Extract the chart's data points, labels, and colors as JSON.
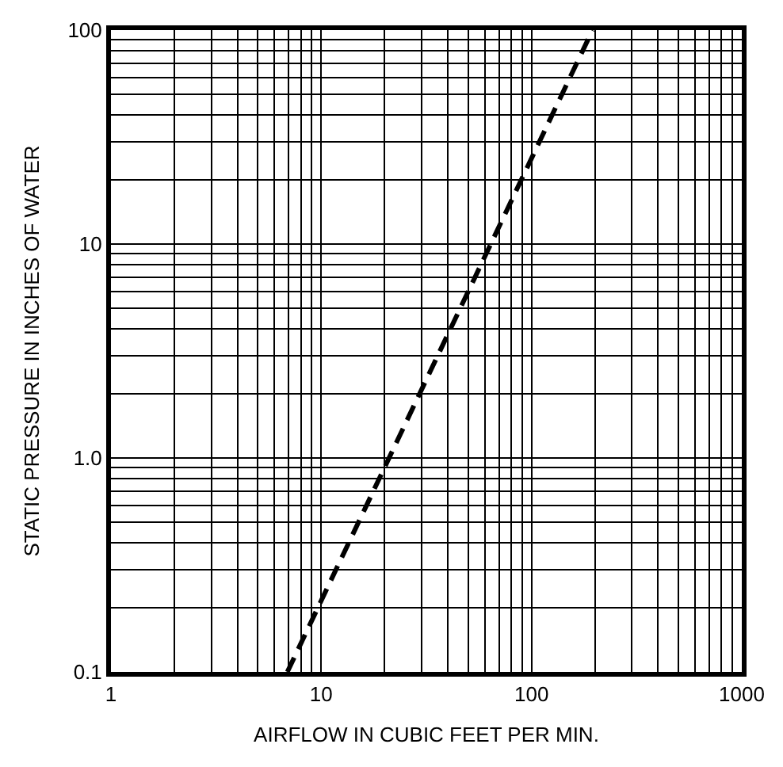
{
  "chart_data": {
    "type": "line",
    "xlabel": "AIRFLOW IN CUBIC FEET PER MIN.",
    "ylabel": "STATIC PRESSURE IN INCHES OF WATER",
    "log": "xy",
    "grid": true,
    "marker": "none",
    "line_style": "dashed",
    "xlim": [
      1,
      1000
    ],
    "ylim": [
      0.1,
      100
    ],
    "xticks": [
      1,
      10,
      100,
      1000
    ],
    "yticks": [
      0.1,
      {
        "value": 1,
        "label": "1.0"
      },
      10,
      100
    ],
    "series": [
      {
        "color": "#000000",
        "x": [
          6.9,
          195
        ],
        "values": [
          0.1,
          100
        ]
      }
    ]
  }
}
